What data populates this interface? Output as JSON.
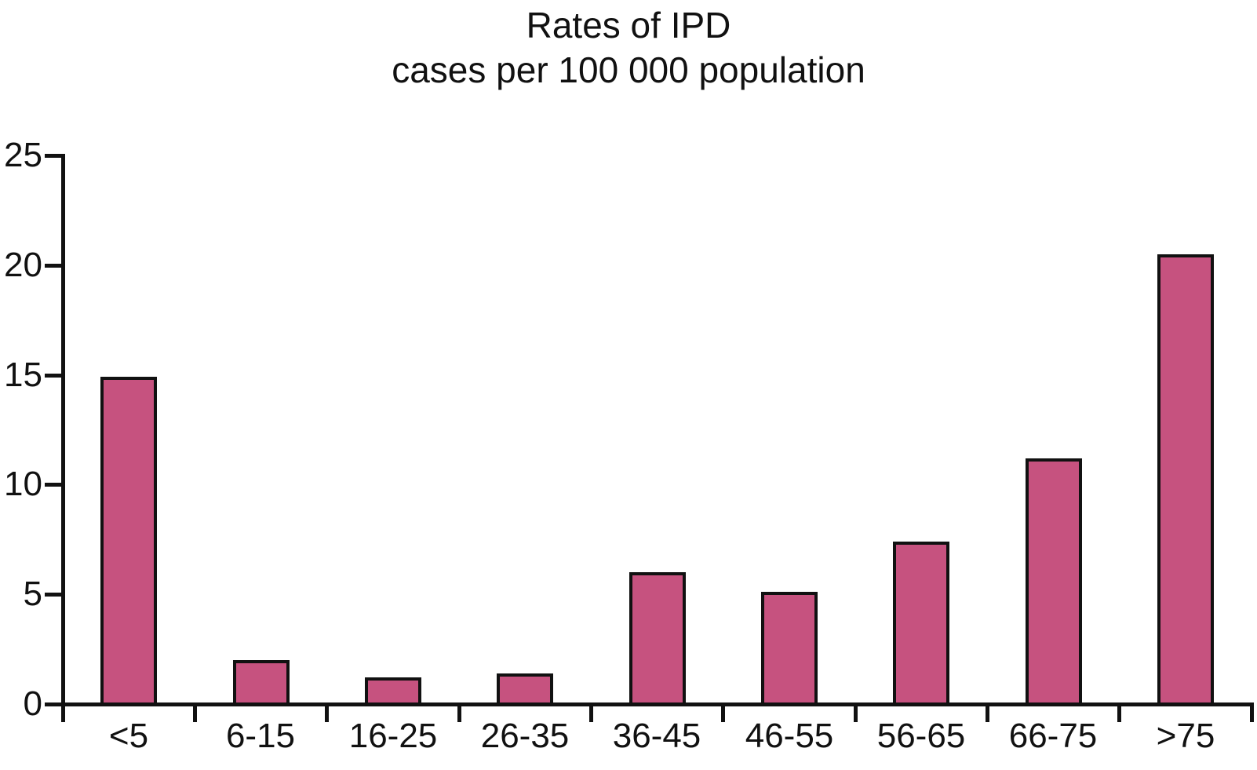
{
  "title": {
    "line1": "Rates of IPD",
    "line2": "cases per 100 000 population"
  },
  "chart_data": {
    "type": "bar",
    "title": "Rates of IPD cases per 100 000 population",
    "categories": [
      "<5",
      "6-15",
      "16-25",
      "26-35",
      "36-45",
      "46-55",
      "56-65",
      "66-75",
      ">75"
    ],
    "values": [
      14.9,
      2.0,
      1.2,
      1.4,
      6.0,
      5.1,
      7.4,
      11.2,
      20.5
    ],
    "xlabel": "",
    "ylabel": "",
    "ylim": [
      0,
      25
    ],
    "yticks": [
      0,
      5,
      10,
      15,
      20,
      25
    ],
    "grid": false,
    "legend_position": "none",
    "bar_color": "#C6527F",
    "bar_border_color": "#111111",
    "axis_color": "#111111",
    "text_color": "#111111"
  }
}
